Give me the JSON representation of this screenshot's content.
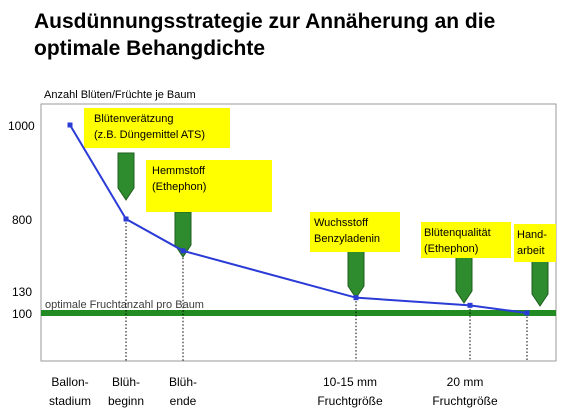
{
  "slide_title": "Ausdünnungsstrategie zur Annäherung an die optimale Behangdichte",
  "chart_data": {
    "type": "line",
    "ylabel": "Anzahl Blüten/Früchte je Baum",
    "y_ticks": [
      "1000",
      "800",
      "130",
      "100"
    ],
    "x_categories": [
      [
        "Ballon-",
        "stadium"
      ],
      [
        "Blüh-",
        "beginn"
      ],
      [
        "Blüh-",
        "ende"
      ],
      [
        "10-15 mm",
        "Fruchtgröße"
      ],
      [
        "20 mm",
        "Fruchtgröße"
      ],
      [
        ""
      ]
    ],
    "series": [
      {
        "points": [
          {
            "x": "Ballonstadium",
            "y": 1000
          },
          {
            "x": "Blühbeginn",
            "y": 800
          },
          {
            "x": "Blühende",
            "y": 500
          },
          {
            "x": "10-15 mm Fruchtgröße",
            "y": 120
          },
          {
            "x": "20 mm Fruchtgröße",
            "y": 110
          },
          {
            "x": "Handarbeit",
            "y": 100
          }
        ]
      }
    ],
    "reference_line": {
      "label": "optimale Fruchtanzahl pro Baum",
      "y": 100,
      "color": "#228b22"
    },
    "line_color": "#2b3bd6",
    "annotations": [
      {
        "text": [
          "Blütenverätzung",
          "(z.B. Düngemittel ATS)"
        ],
        "stage": "Blühbeginn"
      },
      {
        "text": [
          "Hemmstoff",
          "(Ethephon)"
        ],
        "stage": "Blühende"
      },
      {
        "text": [
          "Wuchsstoff",
          "Benzyladenin"
        ],
        "stage": "10-15 mm Fruchtgröße"
      },
      {
        "text": [
          "Blütenqualität",
          "(Ethephon)"
        ],
        "stage": "20 mm Fruchtgröße"
      },
      {
        "text": [
          "Hand-",
          "arbeit"
        ],
        "stage": "Handarbeit"
      }
    ],
    "annotation_fill": "#ffff00",
    "arrow_fill": "#2e8b2e",
    "grid": false
  }
}
